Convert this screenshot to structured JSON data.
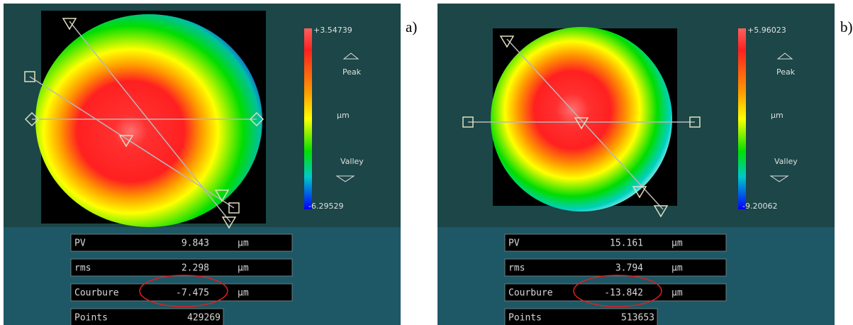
{
  "panels": [
    {
      "label": "a)",
      "scale": {
        "max": "+3.54739",
        "peak": "Peak",
        "unit": "µm",
        "valley": "Valley",
        "min": "-6.29529"
      },
      "stats": [
        {
          "name": "PV",
          "value": "9.843",
          "unit": "µm"
        },
        {
          "name": "rms",
          "value": "2.298",
          "unit": "µm"
        },
        {
          "name": "Courbure",
          "value": "-7.475",
          "unit": "µm"
        },
        {
          "name": "Points",
          "value": "429269"
        }
      ]
    },
    {
      "label": "b)",
      "scale": {
        "max": "+5.96023",
        "peak": "Peak",
        "unit": "µm",
        "valley": "Valley",
        "min": "-9.20062"
      },
      "stats": [
        {
          "name": "PV",
          "value": "15.161",
          "unit": "µm"
        },
        {
          "name": "rms",
          "value": "3.794",
          "unit": "µm"
        },
        {
          "name": "Courbure",
          "value": "-13.842",
          "unit": "µm"
        },
        {
          "name": "Points",
          "value": "513653"
        }
      ]
    }
  ]
}
